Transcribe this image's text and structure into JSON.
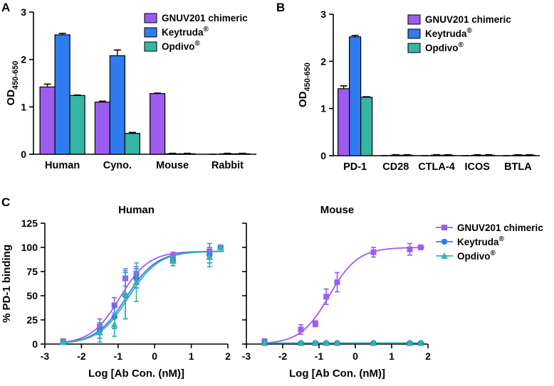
{
  "chart_data": [
    {
      "panel": "A",
      "type": "bar",
      "ylabel": "OD",
      "ylabel_sub": "450-650",
      "ylim": [
        0,
        3
      ],
      "yticks": [
        "0",
        "1",
        "2",
        "3"
      ],
      "categories": [
        "Human",
        "Cyno.",
        "Mouse",
        "Rabbit"
      ],
      "series": [
        {
          "name": "GNUV201 chimeric",
          "name_sup": "",
          "color": "#9C5CF0",
          "values": [
            1.42,
            1.1,
            1.28,
            0.0
          ],
          "errors": [
            0.06,
            0.02,
            0.01,
            0.0
          ]
        },
        {
          "name": "Keytruda",
          "name_sup": "®",
          "color": "#2F7BF0",
          "values": [
            2.52,
            2.08,
            0.01,
            0.01
          ],
          "errors": [
            0.03,
            0.12,
            0.01,
            0.01
          ]
        },
        {
          "name": "Opdivo",
          "name_sup": "®",
          "color": "#35B5A2",
          "values": [
            1.24,
            0.44,
            0.01,
            0.01
          ],
          "errors": [
            0.01,
            0.02,
            0.01,
            0.01
          ]
        }
      ]
    },
    {
      "panel": "B",
      "type": "bar",
      "ylabel": "OD",
      "ylabel_sub": "450-650",
      "ylim": [
        0,
        3
      ],
      "yticks": [
        "0",
        "1",
        "2",
        "3"
      ],
      "categories": [
        "PD-1",
        "CD28",
        "CTLA-4",
        "ICOS",
        "BTLA"
      ],
      "series": [
        {
          "name": "GNUV201 chimeric",
          "name_sup": "",
          "color": "#9C5CF0",
          "values": [
            1.42,
            0.0,
            0.0,
            0.0,
            0.0
          ],
          "errors": [
            0.06,
            0.0,
            0.0,
            0.0,
            0.0
          ]
        },
        {
          "name": "Keytruda",
          "name_sup": "®",
          "color": "#2F7BF0",
          "values": [
            2.52,
            0.01,
            0.01,
            0.01,
            0.01
          ],
          "errors": [
            0.03,
            0.01,
            0.01,
            0.01,
            0.01
          ]
        },
        {
          "name": "Opdivo",
          "name_sup": "®",
          "color": "#35B5A2",
          "values": [
            1.24,
            0.01,
            0.01,
            0.01,
            0.01
          ],
          "errors": [
            0.01,
            0.01,
            0.01,
            0.01,
            0.01
          ]
        }
      ]
    },
    {
      "panel": "C",
      "type": "scatter",
      "title": "Human",
      "xlabel": "Log [Ab Con. (nM)]",
      "ylabel": "% PD-1 binding",
      "xlim": [
        -3,
        2
      ],
      "ylim": [
        0,
        125
      ],
      "xticks": [
        "-3",
        "-2",
        "-1",
        "0",
        "1",
        "2"
      ],
      "yticks": [
        "0",
        "25",
        "50",
        "75",
        "100",
        "125"
      ],
      "series": [
        {
          "name": "GNUV201 chimeric",
          "name_sup": "",
          "color": "#9C5CF0",
          "marker": "square",
          "x": [
            -2.5,
            -1.5,
            -1.1,
            -0.8,
            -0.5,
            0.5,
            1.5,
            1.8
          ],
          "y": [
            3,
            18,
            40,
            68,
            73,
            90,
            96,
            100
          ],
          "err": [
            2,
            8,
            8,
            8,
            7,
            5,
            8,
            2
          ],
          "fit": {
            "bottom": 0,
            "top": 96,
            "logec50": -0.95,
            "hill": 1.1
          }
        },
        {
          "name": "Keytruda",
          "name_sup": "®",
          "color": "#2F7BF0",
          "marker": "circle",
          "x": [
            -2.5,
            -1.5,
            -1.1,
            -0.8,
            -0.5,
            0.5,
            1.5,
            1.8
          ],
          "y": [
            2,
            14,
            28,
            50,
            68,
            86,
            92,
            100
          ],
          "err": [
            2,
            8,
            12,
            24,
            10,
            5,
            8,
            2
          ],
          "fit": {
            "bottom": 0,
            "top": 96,
            "logec50": -0.78,
            "hill": 1.05
          }
        },
        {
          "name": "Opdivo",
          "name_sup": "®",
          "color": "#35B5A2",
          "marker": "triangle",
          "x": [
            -2.5,
            -1.5,
            -1.1,
            -0.8,
            -0.5,
            0.5,
            1.5,
            1.8
          ],
          "y": [
            2,
            12,
            20,
            52,
            64,
            86,
            90,
            100
          ],
          "err": [
            2,
            10,
            12,
            26,
            20,
            5,
            10,
            2
          ],
          "fit": {
            "bottom": 0,
            "top": 96,
            "logec50": -0.72,
            "hill": 1.05
          }
        }
      ]
    },
    {
      "panel": "C",
      "type": "scatter",
      "title": "Mouse",
      "xlabel": "Log [Ab Con. (nM)]",
      "ylabel": "",
      "xlim": [
        -3,
        2
      ],
      "ylim": [
        0,
        125
      ],
      "xticks": [
        "-3",
        "-2",
        "-1",
        "0",
        "1",
        "2"
      ],
      "yticks": [],
      "series": [
        {
          "name": "GNUV201 chimeric",
          "name_sup": "",
          "color": "#9C5CF0",
          "marker": "square",
          "x": [
            -2.5,
            -1.5,
            -1.1,
            -0.8,
            -0.5,
            0.5,
            1.5,
            1.8
          ],
          "y": [
            3,
            15,
            21,
            49,
            64,
            95,
            98,
            100
          ],
          "err": [
            2,
            5,
            3,
            8,
            10,
            5,
            6,
            2
          ],
          "fit": {
            "bottom": 0,
            "top": 100,
            "logec50": -0.72,
            "hill": 1.1
          }
        },
        {
          "name": "Keytruda",
          "name_sup": "®",
          "color": "#2F7BF0",
          "marker": "circle",
          "x": [
            -2.5,
            -1.5,
            -1.1,
            -0.8,
            -0.5,
            0.5,
            1.5,
            1.8
          ],
          "y": [
            1,
            1,
            1,
            1,
            1,
            1,
            1,
            1
          ],
          "err": [
            0,
            0,
            0,
            0,
            0,
            0,
            0,
            0
          ],
          "fit": {
            "bottom": 1,
            "top": 1,
            "logec50": 0,
            "hill": 1
          }
        },
        {
          "name": "Opdivo",
          "name_sup": "®",
          "color": "#35B5A2",
          "marker": "triangle",
          "x": [
            -2.5,
            -1.5,
            -1.1,
            -0.8,
            -0.5,
            0.5,
            1.5,
            1.8
          ],
          "y": [
            1,
            1,
            1,
            1,
            1,
            1,
            1,
            1
          ],
          "err": [
            0,
            0,
            0,
            0,
            0,
            0,
            0,
            0
          ],
          "fit": {
            "bottom": 1,
            "top": 1,
            "logec50": 0,
            "hill": 1
          }
        }
      ]
    }
  ]
}
